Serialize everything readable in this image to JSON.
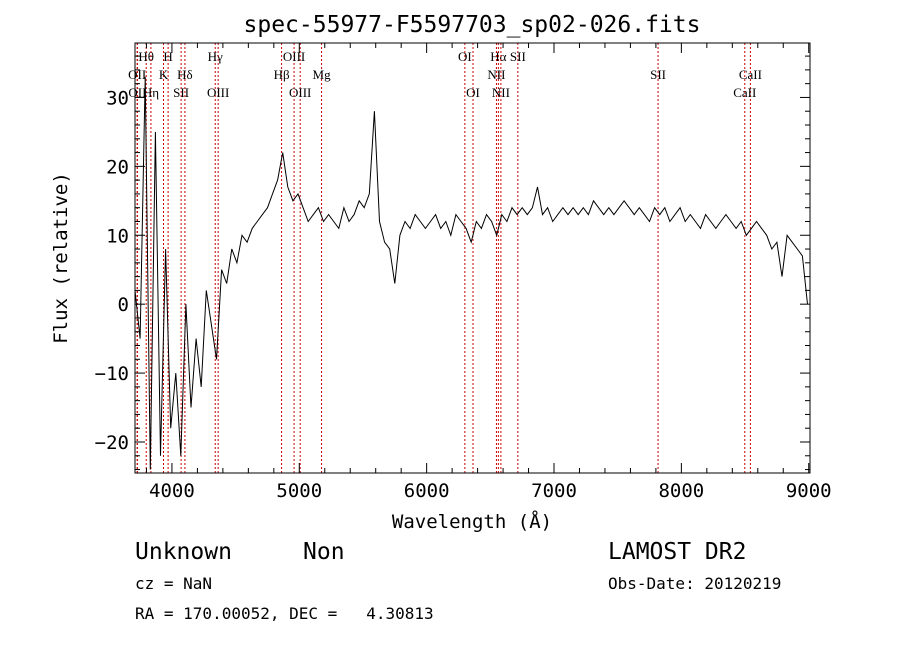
{
  "chart_data": {
    "type": "line",
    "title": "spec-55977-F5597703_sp02-026.fits",
    "xlabel": "Wavelength (Å)",
    "ylabel": "Flux (relative)",
    "xlim": [
      3710,
      9010
    ],
    "ylim": [
      -24.5,
      37.9
    ],
    "xticks": [
      4000,
      5000,
      6000,
      7000,
      8000,
      9000
    ],
    "yticks": [
      -20,
      -10,
      0,
      10,
      20,
      30
    ],
    "grid": false,
    "series": [
      {
        "name": "spectrum",
        "x_start": 3710,
        "x_step": 40,
        "values": [
          2,
          -5,
          33,
          -24,
          25,
          -22,
          8,
          -18,
          -10,
          -22,
          0,
          -15,
          -5,
          -12,
          2,
          -3,
          -8,
          5,
          3,
          8,
          6,
          10,
          9,
          11,
          12,
          13,
          14,
          16,
          18,
          22,
          17,
          15,
          16,
          14,
          12,
          13,
          14,
          12,
          13,
          12,
          11,
          14,
          12,
          13,
          15,
          14,
          16,
          28,
          12,
          9,
          8,
          3,
          10,
          12,
          11,
          13,
          12,
          11,
          12,
          13,
          11,
          12,
          10,
          13,
          12,
          11,
          9,
          12,
          11,
          13,
          12,
          10,
          13,
          12,
          14,
          13,
          14,
          13,
          14,
          17,
          13,
          14,
          12,
          13,
          14,
          13,
          14,
          13,
          14,
          13,
          15,
          14,
          13,
          14,
          13,
          14,
          15,
          14,
          13,
          14,
          13,
          12,
          14,
          13,
          14,
          12,
          13,
          14,
          12,
          13,
          12,
          11,
          13,
          12,
          11,
          12,
          13,
          12,
          11,
          12,
          10,
          11,
          12,
          11,
          10,
          8,
          9,
          4,
          10,
          9,
          8,
          7,
          0
        ]
      }
    ],
    "line_color": "#cc0000",
    "annotations": [
      {
        "label": "Hθ",
        "wavelength": 3798,
        "row": 1
      },
      {
        "label": "H",
        "wavelength": 3970,
        "row": 1
      },
      {
        "label": "Hγ",
        "wavelength": 4340,
        "row": 1
      },
      {
        "label": "OIII",
        "wavelength": 4959,
        "row": 1
      },
      {
        "label": "OI",
        "wavelength": 6300,
        "row": 1
      },
      {
        "label": "Hα",
        "wavelength": 6563,
        "row": 1
      },
      {
        "label": "SII",
        "wavelength": 6716,
        "row": 1
      },
      {
        "label": "OII",
        "wavelength": 3727,
        "row": 2
      },
      {
        "label": "K",
        "wavelength": 3934,
        "row": 2
      },
      {
        "label": "Hδ",
        "wavelength": 4102,
        "row": 2
      },
      {
        "label": "Hβ",
        "wavelength": 4861,
        "row": 2
      },
      {
        "label": "Mg",
        "wavelength": 5175,
        "row": 2
      },
      {
        "label": "NII",
        "wavelength": 6548,
        "row": 2
      },
      {
        "label": "SII",
        "wavelength": 7817,
        "row": 2
      },
      {
        "label": "CaII",
        "wavelength": 8542,
        "row": 2
      },
      {
        "label": "OII",
        "wavelength": 3729,
        "row": 3
      },
      {
        "label": "Hη",
        "wavelength": 3835,
        "row": 3
      },
      {
        "label": "SII",
        "wavelength": 4072,
        "row": 3
      },
      {
        "label": "OIII",
        "wavelength": 4363,
        "row": 3
      },
      {
        "label": "OIII",
        "wavelength": 5007,
        "row": 3
      },
      {
        "label": "OI",
        "wavelength": 6364,
        "row": 3
      },
      {
        "label": "NII",
        "wavelength": 6583,
        "row": 3
      },
      {
        "label": "CaII",
        "wavelength": 8498,
        "row": 3
      }
    ]
  },
  "info": {
    "class": "Unknown",
    "subclass": "Non",
    "cz": "cz = NaN",
    "coords": "RA = 170.00052, DEC =   4.30813",
    "survey": "LAMOST DR2",
    "obs_date": "Obs-Date: 20120219"
  }
}
